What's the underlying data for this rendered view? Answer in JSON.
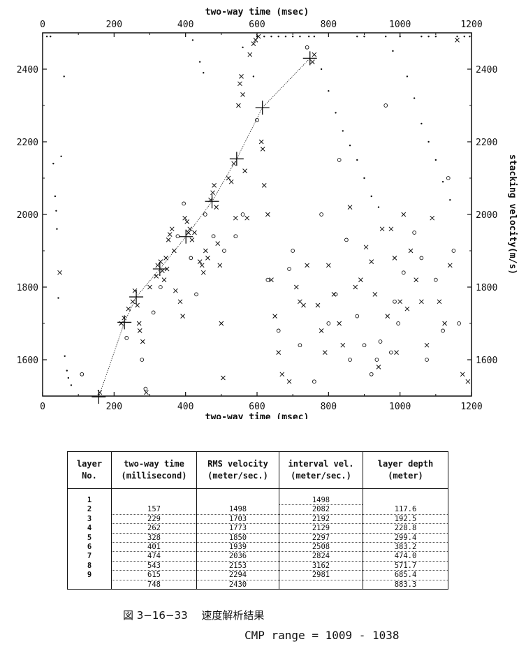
{
  "chart_data": {
    "type": "scatter",
    "title": "",
    "xlabel": "two-way time (msec)",
    "ylabel": "stacking velocity(m/s)",
    "xlim": [
      0,
      1200
    ],
    "ylim": [
      1500,
      2500
    ],
    "xticks": [
      "0",
      "200",
      "400",
      "600",
      "800",
      "1000",
      "1200"
    ],
    "yticks": [
      "1600",
      "1800",
      "2000",
      "2200",
      "2400"
    ],
    "grid": false,
    "picked_velocity_line": {
      "x": [
        157,
        229,
        262,
        328,
        401,
        474,
        543,
        615,
        748
      ],
      "y": [
        1498,
        1703,
        1773,
        1850,
        1939,
        2036,
        2153,
        2294,
        2430
      ]
    },
    "semblance_marks": {
      "cross": [
        [
          48,
          1840
        ],
        [
          160,
          1510
        ],
        [
          220,
          1700
        ],
        [
          228,
          1715
        ],
        [
          240,
          1740
        ],
        [
          252,
          1760
        ],
        [
          258,
          1790
        ],
        [
          265,
          1750
        ],
        [
          270,
          1700
        ],
        [
          272,
          1680
        ],
        [
          280,
          1650
        ],
        [
          290,
          1510
        ],
        [
          300,
          1800
        ],
        [
          318,
          1830
        ],
        [
          322,
          1860
        ],
        [
          330,
          1870
        ],
        [
          335,
          1845
        ],
        [
          340,
          1820
        ],
        [
          345,
          1880
        ],
        [
          348,
          1850
        ],
        [
          352,
          1930
        ],
        [
          356,
          1945
        ],
        [
          362,
          1960
        ],
        [
          368,
          1900
        ],
        [
          372,
          1790
        ],
        [
          385,
          1760
        ],
        [
          392,
          1720
        ],
        [
          398,
          1990
        ],
        [
          404,
          1980
        ],
        [
          408,
          1950
        ],
        [
          412,
          1960
        ],
        [
          418,
          1930
        ],
        [
          425,
          1950
        ],
        [
          440,
          1870
        ],
        [
          446,
          1860
        ],
        [
          450,
          1840
        ],
        [
          456,
          1900
        ],
        [
          462,
          1880
        ],
        [
          470,
          2040
        ],
        [
          476,
          2060
        ],
        [
          480,
          2080
        ],
        [
          486,
          2020
        ],
        [
          490,
          1920
        ],
        [
          496,
          1860
        ],
        [
          500,
          1700
        ],
        [
          505,
          1550
        ],
        [
          520,
          2100
        ],
        [
          528,
          2090
        ],
        [
          535,
          2140
        ],
        [
          540,
          1990
        ],
        [
          548,
          2300
        ],
        [
          552,
          2360
        ],
        [
          556,
          2380
        ],
        [
          560,
          2330
        ],
        [
          566,
          2120
        ],
        [
          572,
          1990
        ],
        [
          580,
          2440
        ],
        [
          590,
          2470
        ],
        [
          596,
          2480
        ],
        [
          604,
          2490
        ],
        [
          612,
          2200
        ],
        [
          616,
          2180
        ],
        [
          620,
          2080
        ],
        [
          630,
          2000
        ],
        [
          640,
          1820
        ],
        [
          650,
          1720
        ],
        [
          660,
          1620
        ],
        [
          670,
          1560
        ],
        [
          690,
          1540
        ],
        [
          710,
          1800
        ],
        [
          720,
          1760
        ],
        [
          730,
          1750
        ],
        [
          740,
          1860
        ],
        [
          755,
          2420
        ],
        [
          760,
          2440
        ],
        [
          770,
          1750
        ],
        [
          780,
          1680
        ],
        [
          790,
          1620
        ],
        [
          800,
          1860
        ],
        [
          815,
          1780
        ],
        [
          830,
          1700
        ],
        [
          840,
          1640
        ],
        [
          860,
          2020
        ],
        [
          875,
          1800
        ],
        [
          890,
          1820
        ],
        [
          905,
          1910
        ],
        [
          920,
          1870
        ],
        [
          930,
          1780
        ],
        [
          940,
          1580
        ],
        [
          950,
          1960
        ],
        [
          965,
          1720
        ],
        [
          975,
          1960
        ],
        [
          985,
          1880
        ],
        [
          990,
          1620
        ],
        [
          1000,
          1760
        ],
        [
          1010,
          2000
        ],
        [
          1020,
          1740
        ],
        [
          1030,
          1900
        ],
        [
          1045,
          1820
        ],
        [
          1060,
          1760
        ],
        [
          1075,
          1640
        ],
        [
          1090,
          1990
        ],
        [
          1110,
          1760
        ],
        [
          1125,
          1700
        ],
        [
          1140,
          1860
        ],
        [
          1160,
          2480
        ],
        [
          1175,
          1560
        ],
        [
          1190,
          1540
        ]
      ],
      "circle": [
        [
          110,
          1560
        ],
        [
          235,
          1660
        ],
        [
          278,
          1600
        ],
        [
          288,
          1520
        ],
        [
          310,
          1730
        ],
        [
          330,
          1800
        ],
        [
          378,
          1940
        ],
        [
          395,
          2030
        ],
        [
          415,
          1880
        ],
        [
          430,
          1780
        ],
        [
          455,
          2000
        ],
        [
          478,
          1940
        ],
        [
          508,
          1900
        ],
        [
          540,
          1940
        ],
        [
          560,
          2000
        ],
        [
          600,
          2260
        ],
        [
          630,
          1820
        ],
        [
          660,
          1680
        ],
        [
          690,
          1850
        ],
        [
          700,
          1900
        ],
        [
          720,
          1640
        ],
        [
          740,
          2460
        ],
        [
          760,
          1540
        ],
        [
          780,
          2000
        ],
        [
          800,
          1700
        ],
        [
          820,
          1780
        ],
        [
          830,
          2150
        ],
        [
          850,
          1930
        ],
        [
          860,
          1600
        ],
        [
          880,
          1720
        ],
        [
          900,
          1640
        ],
        [
          920,
          1560
        ],
        [
          935,
          1600
        ],
        [
          945,
          1650
        ],
        [
          960,
          2300
        ],
        [
          975,
          1620
        ],
        [
          985,
          1760
        ],
        [
          995,
          1700
        ],
        [
          1010,
          1840
        ],
        [
          1040,
          1950
        ],
        [
          1060,
          1880
        ],
        [
          1075,
          1600
        ],
        [
          1100,
          1820
        ],
        [
          1120,
          1680
        ],
        [
          1135,
          2100
        ],
        [
          1150,
          1900
        ],
        [
          1165,
          1700
        ]
      ],
      "dot": [
        [
          12,
          2490
        ],
        [
          22,
          2490
        ],
        [
          30,
          2140
        ],
        [
          35,
          2050
        ],
        [
          38,
          2010
        ],
        [
          40,
          1960
        ],
        [
          44,
          1770
        ],
        [
          52,
          2160
        ],
        [
          60,
          2380
        ],
        [
          62,
          1610
        ],
        [
          68,
          1570
        ],
        [
          72,
          1550
        ],
        [
          80,
          1530
        ],
        [
          420,
          2480
        ],
        [
          440,
          2420
        ],
        [
          450,
          2390
        ],
        [
          560,
          2460
        ],
        [
          590,
          2380
        ],
        [
          620,
          2490
        ],
        [
          660,
          2490
        ],
        [
          720,
          2490
        ],
        [
          745,
          2490
        ],
        [
          760,
          2490
        ],
        [
          780,
          2400
        ],
        [
          800,
          2340
        ],
        [
          820,
          2280
        ],
        [
          840,
          2230
        ],
        [
          860,
          2190
        ],
        [
          880,
          2150
        ],
        [
          900,
          2100
        ],
        [
          920,
          2050
        ],
        [
          940,
          2020
        ],
        [
          960,
          2490
        ],
        [
          980,
          2450
        ],
        [
          1000,
          2490
        ],
        [
          1020,
          2380
        ],
        [
          1040,
          2320
        ],
        [
          1060,
          2250
        ],
        [
          1080,
          2200
        ],
        [
          1100,
          2150
        ],
        [
          1120,
          2090
        ],
        [
          1140,
          2040
        ],
        [
          1160,
          2490
        ],
        [
          1180,
          2490
        ],
        [
          1195,
          2490
        ],
        [
          1060,
          2490
        ],
        [
          1080,
          2490
        ],
        [
          1100,
          2490
        ],
        [
          900,
          2490
        ],
        [
          880,
          2490
        ],
        [
          700,
          2490
        ],
        [
          680,
          2490
        ],
        [
          640,
          2490
        ],
        [
          600,
          2490
        ]
      ]
    }
  },
  "table": {
    "headers": [
      [
        "layer",
        "No."
      ],
      [
        "two-way time",
        "(millisecond)"
      ],
      [
        "RMS velocity",
        "(meter/sec.)"
      ],
      [
        "interval vel.",
        "(meter/sec.)"
      ],
      [
        "layer depth",
        "(meter)"
      ]
    ],
    "rows": [
      {
        "no": "1",
        "time": "",
        "rms": "",
        "interval": "1498",
        "depth": ""
      },
      {
        "no": "2",
        "time": "157",
        "rms": "1498",
        "interval": "2082",
        "depth": "117.6"
      },
      {
        "no": "3",
        "time": "229",
        "rms": "1703",
        "interval": "2192",
        "depth": "192.5"
      },
      {
        "no": "4",
        "time": "262",
        "rms": "1773",
        "interval": "2129",
        "depth": "228.8"
      },
      {
        "no": "5",
        "time": "328",
        "rms": "1850",
        "interval": "2297",
        "depth": "299.4"
      },
      {
        "no": "6",
        "time": "401",
        "rms": "1939",
        "interval": "2508",
        "depth": "383.2"
      },
      {
        "no": "7",
        "time": "474",
        "rms": "2036",
        "interval": "2824",
        "depth": "474.0"
      },
      {
        "no": "8",
        "time": "543",
        "rms": "2153",
        "interval": "3162",
        "depth": "571.7"
      },
      {
        "no": "9",
        "time": "615",
        "rms": "2294",
        "interval": "2981",
        "depth": "685.4"
      },
      {
        "no": "",
        "time": "748",
        "rms": "2430",
        "interval": "",
        "depth": "883.3"
      }
    ]
  },
  "caption": "図 3−16−33　 速度解析結果",
  "cmp_range": "CMP range = 1009 - 1038"
}
